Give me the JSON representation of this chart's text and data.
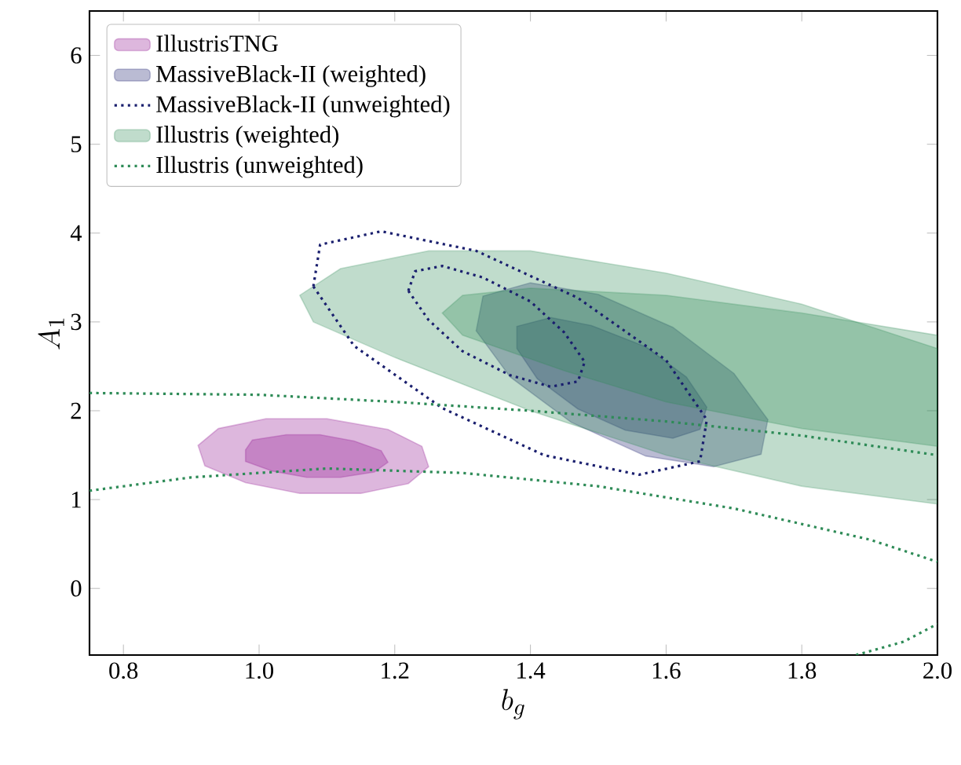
{
  "chart_data": {
    "type": "area",
    "xlabel": "b_g",
    "ylabel": "A_1",
    "xlim": [
      0.75,
      2.0
    ],
    "ylim": [
      -0.75,
      6.5
    ],
    "xticks": [
      {
        "value": 0.8,
        "label": "0.8"
      },
      {
        "value": 1.0,
        "label": "1.0"
      },
      {
        "value": 1.2,
        "label": "1.2"
      },
      {
        "value": 1.4,
        "label": "1.4"
      },
      {
        "value": 1.6,
        "label": "1.6"
      },
      {
        "value": 1.8,
        "label": "1.8"
      },
      {
        "value": 2.0,
        "label": "2.0"
      }
    ],
    "yticks": [
      0,
      1,
      2,
      3,
      4,
      5,
      6
    ],
    "legend": "top left",
    "grid": false,
    "series": [
      {
        "name": "IllustrisTNG",
        "color": "#8e0f8e",
        "x": [
          1.25,
          1.24,
          1.19,
          1.1,
          1.01,
          0.94,
          0.91,
          0.92,
          0.98,
          1.06,
          1.15,
          1.22
        ],
        "values": [
          1.37,
          1.6,
          1.79,
          1.91,
          1.91,
          1.8,
          1.61,
          1.38,
          1.19,
          1.07,
          1.07,
          1.18
        ]
      },
      {
        "color": "#8e0f8e",
        "x": [
          1.19,
          1.18,
          1.14,
          1.09,
          1.04,
          0.99,
          0.98,
          0.98,
          1.02,
          1.07,
          1.12,
          1.17
        ],
        "values": [
          1.42,
          1.55,
          1.66,
          1.73,
          1.73,
          1.67,
          1.56,
          1.43,
          1.32,
          1.25,
          1.25,
          1.31
        ]
      },
      {
        "name": "MassiveBlack-II (weighted)",
        "color": "#1a1f6e",
        "x": [
          1.75,
          1.7,
          1.61,
          1.5,
          1.4,
          1.33,
          1.32,
          1.37,
          1.46,
          1.57,
          1.67,
          1.74
        ],
        "values": [
          1.9,
          2.42,
          2.94,
          3.31,
          3.44,
          3.29,
          2.9,
          2.38,
          1.87,
          1.49,
          1.37,
          1.51
        ]
      },
      {
        "color": "#1a1f6e",
        "x": [
          1.66,
          1.63,
          1.57,
          1.49,
          1.43,
          1.38,
          1.38,
          1.41,
          1.47,
          1.54,
          1.61,
          1.65
        ],
        "values": [
          2.04,
          2.38,
          2.72,
          2.96,
          3.05,
          2.95,
          2.7,
          2.36,
          2.02,
          1.78,
          1.69,
          1.79
        ]
      },
      {
        "name": "MassiveBlack-II (unweighted)",
        "type": "line",
        "line_style": "dotted",
        "color": "#1a1f6e",
        "x": [
          1.08,
          1.09,
          1.18,
          1.32,
          1.47,
          1.6,
          1.66,
          null,
          1.08,
          1.14,
          1.27,
          1.42,
          1.56,
          1.65,
          1.66
        ],
        "values": [
          3.4,
          3.87,
          4.02,
          3.8,
          3.27,
          2.57,
          1.9,
          null,
          3.4,
          2.73,
          2.03,
          1.5,
          1.28,
          1.43,
          1.9
        ]
      },
      {
        "type": "line",
        "line_style": "dotted",
        "color": "#1a1f6e",
        "x": [
          1.22,
          1.23,
          1.27,
          1.33,
          1.4,
          1.45,
          1.48,
          null,
          1.22,
          1.25,
          1.3,
          1.37,
          1.43,
          1.47,
          1.48
        ],
        "values": [
          3.35,
          3.57,
          3.63,
          3.5,
          3.23,
          2.88,
          2.55,
          null,
          3.35,
          3.02,
          2.67,
          2.4,
          2.27,
          2.33,
          2.55
        ]
      },
      {
        "name": "Illustris (weighted)",
        "color": "#2e8b57",
        "x": [
          2.0,
          1.8,
          1.6,
          1.4,
          1.25,
          1.12,
          1.06,
          1.08,
          1.2,
          1.4,
          1.6,
          1.8,
          2.0
        ],
        "values": [
          2.7,
          3.2,
          3.55,
          3.8,
          3.8,
          3.6,
          3.3,
          3.0,
          2.6,
          2.0,
          1.5,
          1.15,
          0.95
        ]
      },
      {
        "color": "#2e8b57",
        "x": [
          2.0,
          1.8,
          1.6,
          1.4,
          1.3,
          1.27,
          1.3,
          1.45,
          1.6,
          1.8,
          2.0
        ],
        "values": [
          2.85,
          3.1,
          3.3,
          3.38,
          3.3,
          3.1,
          2.85,
          2.45,
          2.1,
          1.8,
          1.6
        ]
      },
      {
        "name": "Illustris (unweighted)",
        "type": "line",
        "line_style": "dotted",
        "color": "#2e8b57",
        "x": [
          0.75,
          1.0,
          1.2,
          1.4,
          1.6,
          1.8,
          2.0,
          null,
          0.75,
          0.9,
          1.1,
          1.3,
          1.5,
          1.7,
          1.9,
          2.0,
          null,
          1.88,
          1.95,
          2.0
        ],
        "values": [
          2.2,
          2.18,
          2.1,
          2.0,
          1.88,
          1.72,
          1.5,
          null,
          1.1,
          1.25,
          1.35,
          1.3,
          1.15,
          0.9,
          0.55,
          0.3,
          null,
          -0.75,
          -0.6,
          -0.4
        ]
      }
    ]
  }
}
